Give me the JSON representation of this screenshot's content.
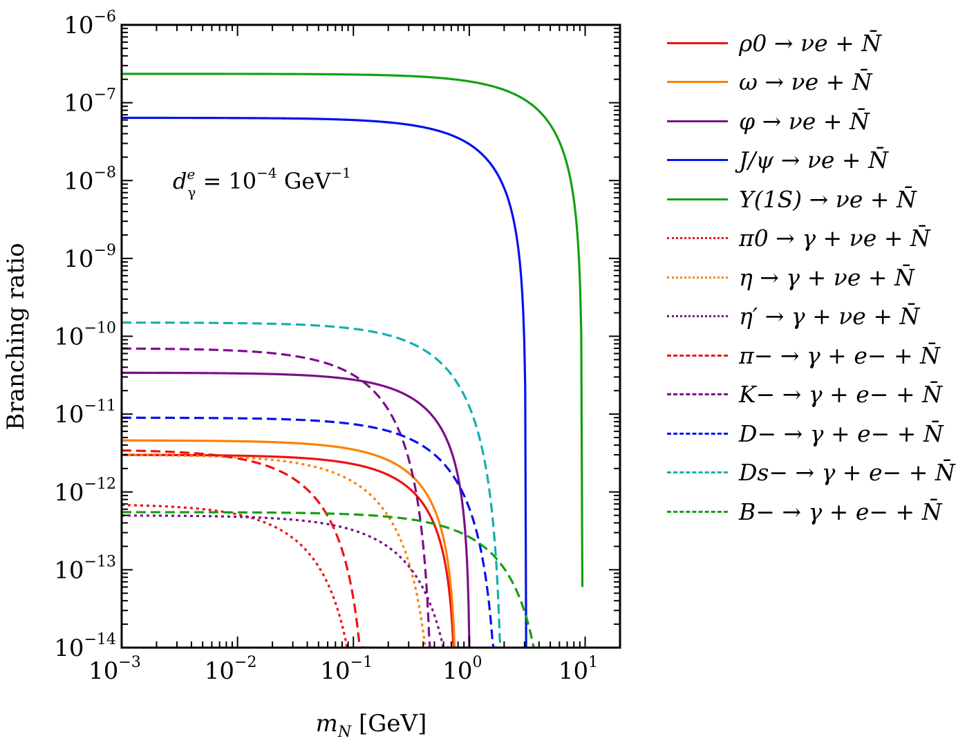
{
  "chart_data": {
    "type": "line",
    "xlabel": "m_N [GeV]",
    "ylabel": "Branching ratio",
    "x_scale": "log",
    "y_scale": "log",
    "xlim": [
      0.001,
      20
    ],
    "ylim": [
      1e-14,
      1e-06
    ],
    "grid": false,
    "legend_position": "right-outside",
    "annotation": "d_γ^e = 10^−4 GeV^−1",
    "x_ticks": [
      {
        "value": 0.001,
        "base": "10",
        "exp": "−3"
      },
      {
        "value": 0.01,
        "base": "10",
        "exp": "−2"
      },
      {
        "value": 0.1,
        "base": "10",
        "exp": "−1"
      },
      {
        "value": 1,
        "base": "10",
        "exp": "0"
      },
      {
        "value": 10,
        "base": "10",
        "exp": "1"
      }
    ],
    "y_ticks": [
      {
        "value": 1e-14,
        "base": "10",
        "exp": "−14"
      },
      {
        "value": 1e-13,
        "base": "10",
        "exp": "−13"
      },
      {
        "value": 1e-12,
        "base": "10",
        "exp": "−12"
      },
      {
        "value": 1e-11,
        "base": "10",
        "exp": "−11"
      },
      {
        "value": 1e-10,
        "base": "10",
        "exp": "−10"
      },
      {
        "value": 1e-09,
        "base": "10",
        "exp": "−9"
      },
      {
        "value": 1e-08,
        "base": "10",
        "exp": "−8"
      },
      {
        "value": 1e-07,
        "base": "10",
        "exp": "−7"
      },
      {
        "value": 1e-06,
        "base": "10",
        "exp": "−6"
      }
    ],
    "series": [
      {
        "name": "ρ0 → νe + N̄",
        "color": "#ee1111",
        "style": "solid",
        "plateau": 3e-12,
        "cutoff": 0.775,
        "shape": 2,
        "endValue": 1e-14
      },
      {
        "name": "ω → νe + N̄",
        "color": "#ff8000",
        "style": "solid",
        "plateau": 4.6e-12,
        "cutoff": 0.783,
        "shape": 2,
        "endValue": 1e-14
      },
      {
        "name": "φ → νe + N̄",
        "color": "#7b0f8a",
        "style": "solid",
        "plateau": 3.4e-11,
        "cutoff": 1.019,
        "shape": 2,
        "endValue": 1e-14
      },
      {
        "name": "J/ψ → νe + N̄",
        "color": "#0011ee",
        "style": "solid",
        "plateau": 6.4e-08,
        "cutoff": 3.097,
        "shape": 2,
        "endValue": 1e-14
      },
      {
        "name": "Υ(1S) → νe + N̄",
        "color": "#13a013",
        "style": "solid",
        "plateau": 2.35e-07,
        "cutoff": 9.46,
        "shape": 2,
        "endValue": 6e-14
      },
      {
        "name": "π0 → γ + νe + N̄",
        "color": "#ee1111",
        "style": "dotted",
        "plateau": 7e-13,
        "cutoff": 0.135,
        "shape": 4,
        "endValue": 1e-14
      },
      {
        "name": "η → γ + νe + N̄",
        "color": "#ff8000",
        "style": "dotted",
        "plateau": 3e-12,
        "cutoff": 0.548,
        "shape": 4,
        "endValue": 1e-14
      },
      {
        "name": "η′ → γ + νe + N̄",
        "color": "#7b0f8a",
        "style": "dotted",
        "plateau": 5e-13,
        "cutoff": 0.958,
        "shape": 4,
        "endValue": 1e-14
      },
      {
        "name": "π− → γ + e− + N̄",
        "color": "#ee1111",
        "style": "dashed",
        "plateau": 3.5e-12,
        "cutoff": 0.1396,
        "shape": 3.5,
        "endValue": 1e-14
      },
      {
        "name": "K− → γ + e− + N̄",
        "color": "#7b0f8a",
        "style": "dashed",
        "plateau": 7e-11,
        "cutoff": 0.4937,
        "shape": 3.5,
        "endValue": 1e-14
      },
      {
        "name": "D− → γ + e− + N̄",
        "color": "#0011ee",
        "style": "dashed",
        "plateau": 9e-12,
        "cutoff": 1.8697,
        "shape": 3.5,
        "endValue": 1e-14
      },
      {
        "name": "Ds− → γ + e− + N̄",
        "color": "#14afaf",
        "style": "dashed",
        "plateau": 1.5e-10,
        "cutoff": 1.968,
        "shape": 3.5,
        "endValue": 1e-14
      },
      {
        "name": "B− → γ + e− + N̄",
        "color": "#13a013",
        "style": "dashed",
        "plateau": 5.5e-13,
        "cutoff": 5.279,
        "shape": 3.5,
        "endValue": 1e-14
      }
    ]
  }
}
